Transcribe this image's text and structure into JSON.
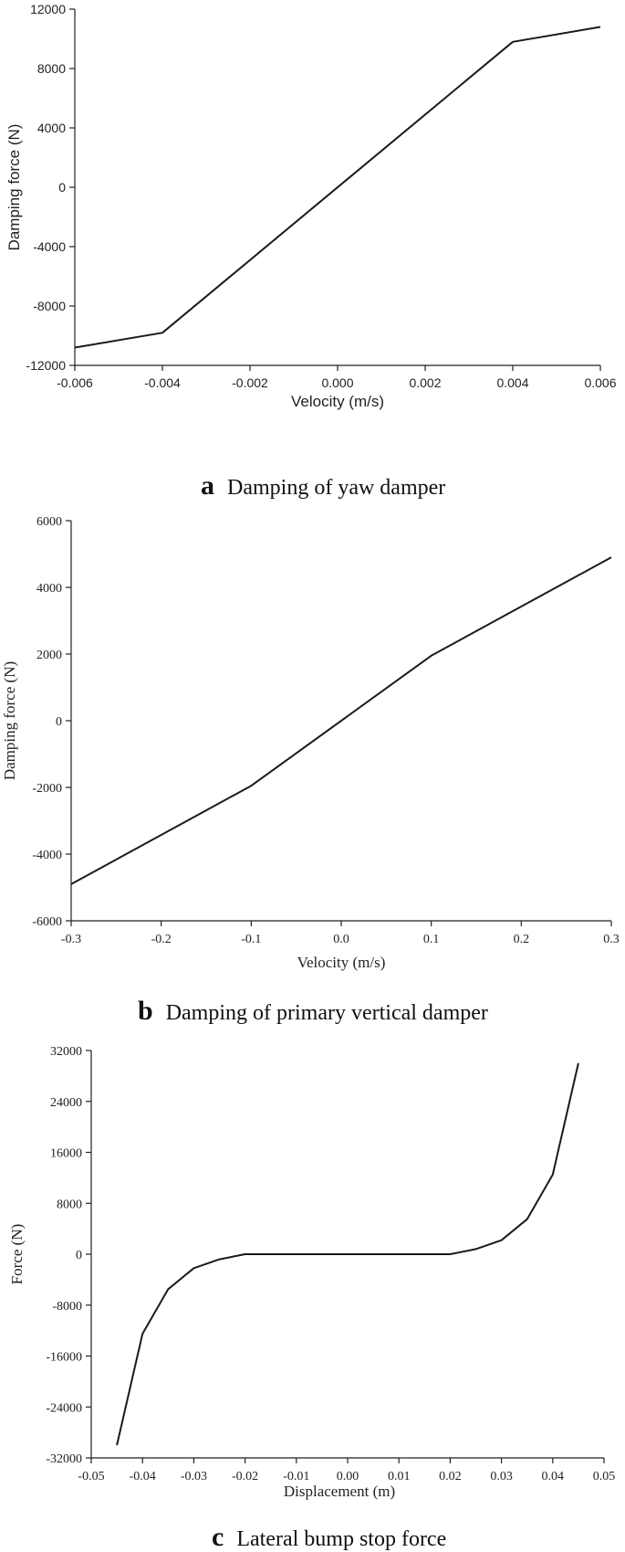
{
  "chart_data": [
    {
      "type": "line",
      "xlabel": "Velocity (m/s)",
      "ylabel": "Damping force (N)",
      "xlim": [
        -0.006,
        0.006
      ],
      "ylim": [
        -12000,
        12000
      ],
      "xticks": [
        "-0.006",
        "-0.004",
        "-0.002",
        "0.000",
        "0.002",
        "0.004",
        "0.006"
      ],
      "yticks": [
        "12000",
        "8000",
        "4000",
        "0",
        "-4000",
        "-8000",
        "-12000"
      ],
      "x": [
        -0.006,
        -0.004,
        0.004,
        0.006
      ],
      "y": [
        -10800,
        -9800,
        9800,
        10800
      ],
      "caption_letter": "a",
      "caption_text": "Damping of yaw damper"
    },
    {
      "type": "line",
      "xlabel": "Velocity (m/s)",
      "ylabel": "Damping force (N)",
      "xlim": [
        -0.3,
        0.3
      ],
      "ylim": [
        -6000,
        6000
      ],
      "xticks": [
        "-0.3",
        "-0.2",
        "-0.1",
        "0.0",
        "0.1",
        "0.2",
        "0.3"
      ],
      "yticks": [
        "6000",
        "4000",
        "2000",
        "0",
        "-2000",
        "-4000",
        "-6000"
      ],
      "x": [
        -0.3,
        -0.1,
        0.1,
        0.3
      ],
      "y": [
        -4900,
        -1950,
        1950,
        4900
      ],
      "caption_letter": "b",
      "caption_text": "Damping of primary vertical damper"
    },
    {
      "type": "line",
      "xlabel": "Displacement (m)",
      "ylabel": "Force (N)",
      "xlim": [
        -0.05,
        0.05
      ],
      "ylim": [
        -32000,
        32000
      ],
      "xticks": [
        "-0.05",
        "-0.04",
        "-0.03",
        "-0.02",
        "-0.01",
        "0.00",
        "0.01",
        "0.02",
        "0.03",
        "0.04",
        "0.05"
      ],
      "yticks": [
        "32000",
        "24000",
        "16000",
        "8000",
        "0",
        "-8000",
        "-16000",
        "-24000",
        "-32000"
      ],
      "x": [
        -0.045,
        -0.04,
        -0.035,
        -0.03,
        -0.025,
        -0.02,
        0.02,
        0.025,
        0.03,
        0.035,
        0.04,
        0.045
      ],
      "y": [
        -30000,
        -12500,
        -5500,
        -2200,
        -800,
        0,
        0,
        800,
        2200,
        5500,
        12500,
        30000
      ],
      "caption_letter": "c",
      "caption_text": "Lateral bump stop force"
    }
  ]
}
